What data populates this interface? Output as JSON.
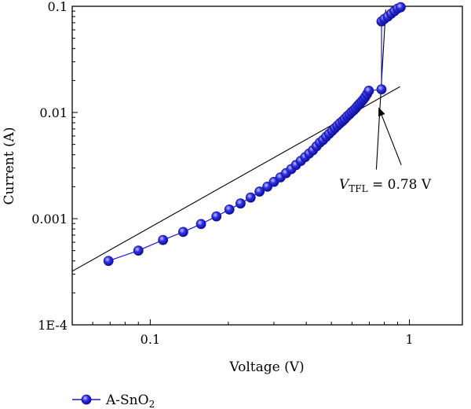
{
  "chart_data": {
    "type": "scatter",
    "xlabel": "Voltage (V)",
    "ylabel": "Current (A)",
    "x_scale": "log",
    "y_scale": "log",
    "xlim": [
      0.05,
      1.6
    ],
    "ylim": [
      0.0001,
      0.1
    ],
    "x_ticks": [
      {
        "value": 0.1,
        "label": "0.1"
      },
      {
        "value": 1,
        "label": "1"
      }
    ],
    "y_ticks": [
      {
        "value": 0.0001,
        "label": "1E-4"
      },
      {
        "value": 0.001,
        "label": "0.001"
      },
      {
        "value": 0.01,
        "label": "0.01"
      },
      {
        "value": 0.1,
        "label": "0.1"
      }
    ],
    "grid": false,
    "legend_position": "bottom-left",
    "series": [
      {
        "name": "A-SnO",
        "name_subscript": "2",
        "color": "#1a1adc",
        "marker": "circle",
        "points": [
          [
            0.069,
            0.0004
          ],
          [
            0.09,
            0.0005
          ],
          [
            0.112,
            0.00063
          ],
          [
            0.134,
            0.00075
          ],
          [
            0.157,
            0.00089
          ],
          [
            0.18,
            0.00105
          ],
          [
            0.202,
            0.00122
          ],
          [
            0.223,
            0.00139
          ],
          [
            0.244,
            0.00158
          ],
          [
            0.264,
            0.0018
          ],
          [
            0.283,
            0.002
          ],
          [
            0.3,
            0.00222
          ],
          [
            0.318,
            0.00245
          ],
          [
            0.334,
            0.00268
          ],
          [
            0.35,
            0.00293
          ],
          [
            0.365,
            0.0032
          ],
          [
            0.381,
            0.0035
          ],
          [
            0.396,
            0.0038
          ],
          [
            0.41,
            0.0041
          ],
          [
            0.424,
            0.0044
          ],
          [
            0.438,
            0.0048
          ],
          [
            0.451,
            0.0052
          ],
          [
            0.464,
            0.0055
          ],
          [
            0.477,
            0.0059
          ],
          [
            0.49,
            0.0063
          ],
          [
            0.503,
            0.0067
          ],
          [
            0.515,
            0.0071
          ],
          [
            0.527,
            0.0075
          ],
          [
            0.539,
            0.0079
          ],
          [
            0.552,
            0.0083
          ],
          [
            0.563,
            0.0087
          ],
          [
            0.575,
            0.0092
          ],
          [
            0.587,
            0.0096
          ],
          [
            0.598,
            0.0101
          ],
          [
            0.61,
            0.0105
          ],
          [
            0.621,
            0.011
          ],
          [
            0.632,
            0.0116
          ],
          [
            0.643,
            0.0121
          ],
          [
            0.654,
            0.0127
          ],
          [
            0.665,
            0.0133
          ],
          [
            0.675,
            0.014
          ],
          [
            0.686,
            0.0149
          ],
          [
            0.697,
            0.016
          ],
          [
            0.78,
            0.0165
          ],
          [
            0.78,
            0.072
          ],
          [
            0.8,
            0.076
          ],
          [
            0.825,
            0.08
          ],
          [
            0.85,
            0.085
          ],
          [
            0.875,
            0.09
          ],
          [
            0.9,
            0.095
          ],
          [
            0.925,
            0.098
          ]
        ]
      }
    ],
    "fit_lines": [
      {
        "x1": 0.05,
        "y1": 0.00032,
        "x2": 0.92,
        "y2": 0.0175
      },
      {
        "x1": 0.745,
        "y1": 0.0029,
        "x2": 0.81,
        "y2": 0.093
      }
    ],
    "annotation": {
      "text_main": "V",
      "text_sub": "TFL",
      "text_rest": " = 0.78 V",
      "arrow_from": [
        0.93,
        0.0032
      ],
      "arrow_to": [
        0.76,
        0.0112
      ]
    }
  }
}
